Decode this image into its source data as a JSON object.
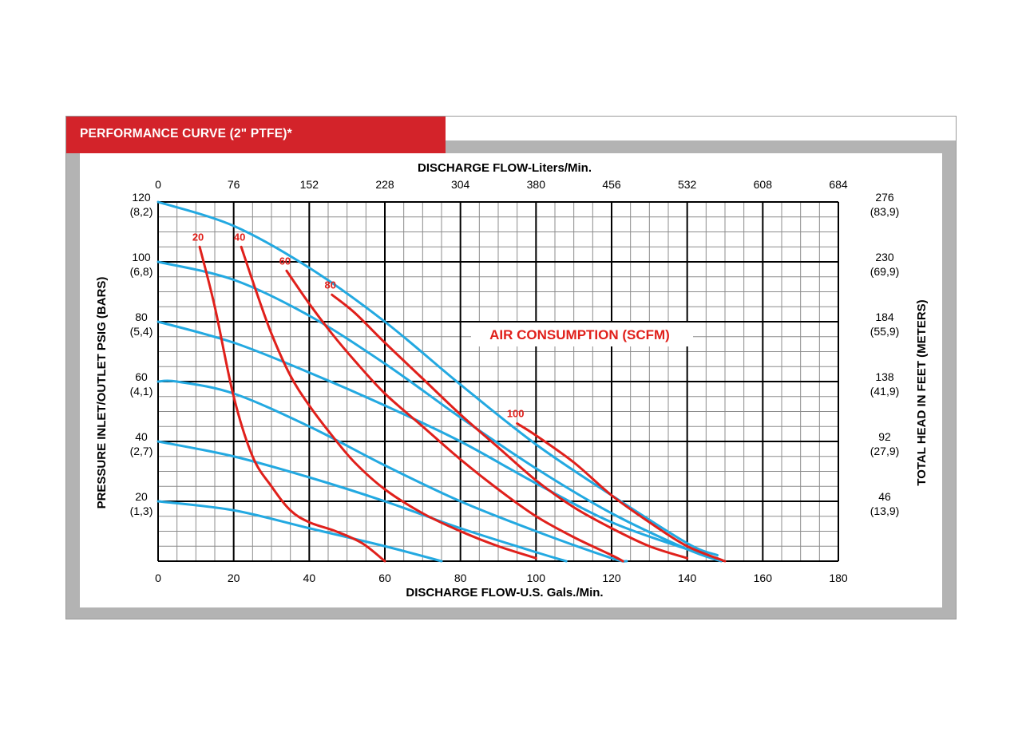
{
  "header": {
    "title": "PERFORMANCE CURVE (2\" PTFE)*"
  },
  "chart_data": {
    "type": "line",
    "title": "PERFORMANCE CURVE (2\" PTFE)*",
    "xlabel": "DISCHARGE FLOW-U.S. Gals./Min.",
    "x2label": "DISCHARGE FLOW-Liters/Min.",
    "ylabel": "PRESSURE INLET/OUTLET PSIG (BARS)",
    "y2label": "TOTAL HEAD IN FEET (METERS)",
    "xlim": [
      0,
      180
    ],
    "ylim": [
      0,
      120
    ],
    "grid": true,
    "x_ticks": [
      "0",
      "20",
      "40",
      "60",
      "80",
      "100",
      "120",
      "140",
      "160",
      "180"
    ],
    "x_top_ticks": [
      "0",
      "76",
      "152",
      "228",
      "304",
      "380",
      "456",
      "532",
      "608",
      "684"
    ],
    "y_left_ticks": [
      {
        "value": 120,
        "psi": "120",
        "bar": "(8,2)"
      },
      {
        "value": 100,
        "psi": "100",
        "bar": "(6,8)"
      },
      {
        "value": 80,
        "psi": "80",
        "bar": "(5,4)"
      },
      {
        "value": 60,
        "psi": "60",
        "bar": "(4,1)"
      },
      {
        "value": 40,
        "psi": "40",
        "bar": "(2,7)"
      },
      {
        "value": 20,
        "psi": "20",
        "bar": "(1,3)"
      }
    ],
    "y_right_ticks": [
      {
        "value": 120,
        "feet": "276",
        "meters": "(83,9)"
      },
      {
        "value": 100,
        "feet": "230",
        "meters": "(69,9)"
      },
      {
        "value": 80,
        "feet": "184",
        "meters": "(55,9)"
      },
      {
        "value": 60,
        "feet": "138",
        "meters": "(41,9)"
      },
      {
        "value": 40,
        "feet": "92",
        "meters": "(27,9)"
      },
      {
        "value": 20,
        "feet": "46",
        "meters": "(13,9)"
      }
    ],
    "annotation": "AIR CONSUMPTION (SCFM)",
    "colors": {
      "pressure_curves": "#23a9e1",
      "air_curves": "#e0201b",
      "header": "#d3232a",
      "band": "#b3b3b3"
    },
    "pressure_curves": [
      {
        "x": [
          0,
          20,
          40,
          60,
          80,
          100,
          120,
          140,
          148
        ],
        "y": [
          120,
          112,
          98,
          80,
          59,
          39,
          22,
          6,
          2
        ]
      },
      {
        "x": [
          0,
          20,
          40,
          60,
          80,
          100,
          120,
          140,
          149
        ],
        "y": [
          100,
          94,
          82,
          66,
          48,
          31,
          16,
          4,
          0
        ]
      },
      {
        "x": [
          0,
          20,
          40,
          60,
          80,
          100,
          120,
          140,
          148
        ],
        "y": [
          80,
          73,
          63,
          52,
          40,
          26,
          13,
          4,
          1
        ]
      },
      {
        "x": [
          0,
          5,
          20,
          40,
          60,
          80,
          100,
          120,
          124
        ],
        "y": [
          60,
          60,
          56,
          45,
          32,
          20,
          10,
          1,
          0
        ]
      },
      {
        "x": [
          0,
          20,
          40,
          60,
          80,
          100,
          108
        ],
        "y": [
          40,
          35,
          28,
          20,
          11,
          3,
          0
        ]
      },
      {
        "x": [
          0,
          20,
          40,
          60,
          75
        ],
        "y": [
          20,
          17,
          11,
          5,
          0
        ]
      }
    ],
    "air_curves": [
      {
        "label": "20",
        "x": [
          11,
          15,
          20,
          25,
          30,
          35,
          40,
          47,
          54,
          60
        ],
        "y": [
          105,
          85,
          55,
          35,
          25,
          17,
          13,
          10,
          6,
          0
        ]
      },
      {
        "label": "40",
        "x": [
          22,
          26,
          30,
          35,
          40,
          46,
          52,
          60,
          70,
          80,
          90,
          100
        ],
        "y": [
          105,
          90,
          76,
          62,
          52,
          42,
          33,
          24,
          16,
          10,
          5,
          1
        ]
      },
      {
        "label": "60",
        "x": [
          34,
          40,
          46,
          52,
          60,
          70,
          80,
          90,
          100,
          110,
          120,
          123
        ],
        "y": [
          97,
          86,
          76,
          67,
          56,
          45,
          34,
          24,
          15,
          8,
          2,
          0
        ]
      },
      {
        "label": "80",
        "x": [
          46,
          52,
          60,
          70,
          80,
          90,
          100,
          110,
          120,
          130,
          140
        ],
        "y": [
          89,
          83,
          73,
          61,
          49,
          38,
          27,
          18,
          11,
          5,
          1
        ]
      },
      {
        "label": "100",
        "x": [
          95,
          100,
          110,
          120,
          130,
          140,
          150
        ],
        "y": [
          46,
          42,
          33,
          22,
          13,
          5,
          0
        ]
      }
    ]
  }
}
